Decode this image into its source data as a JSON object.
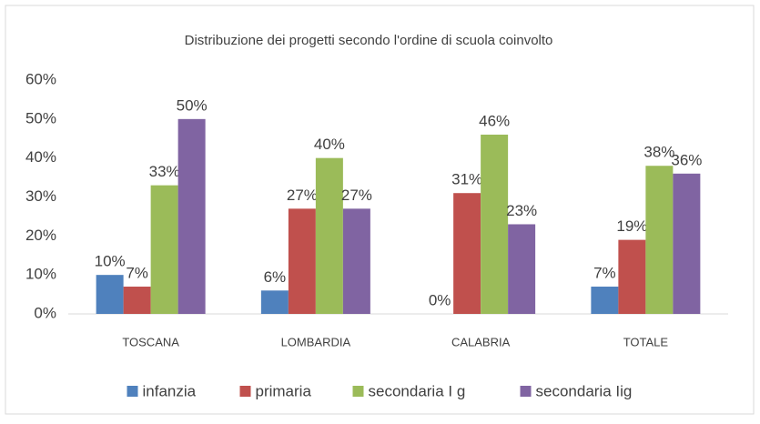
{
  "chart_data": {
    "type": "bar",
    "title": "Distribuzione dei progetti secondo l'ordine di scuola coinvolto",
    "categories": [
      "TOSCANA",
      "LOMBARDIA",
      "CALABRIA",
      "TOTALE"
    ],
    "series": [
      {
        "name": "infanzia",
        "color": "#4f81bd",
        "values": [
          10,
          6,
          0,
          7
        ],
        "value_labels": [
          "10%",
          "6%",
          "0%",
          "7%"
        ]
      },
      {
        "name": "primaria",
        "color": "#c0504d",
        "values": [
          7,
          27,
          31,
          19
        ],
        "value_labels": [
          "7%",
          "27%",
          "31%",
          "19%"
        ]
      },
      {
        "name": "secondaria I g",
        "color": "#9bbb59",
        "values": [
          33,
          40,
          46,
          38
        ],
        "value_labels": [
          "33%",
          "40%",
          "46%",
          "38%"
        ]
      },
      {
        "name": "secondaria Iig",
        "color": "#8064a2",
        "values": [
          50,
          27,
          23,
          36
        ],
        "value_labels": [
          "50%",
          "27%",
          "23%",
          "36%"
        ]
      }
    ],
    "ylim": [
      0,
      60
    ],
    "yticks": [
      {
        "value": 0,
        "label": "0%"
      },
      {
        "value": 10,
        "label": "10%"
      },
      {
        "value": 20,
        "label": "20%"
      },
      {
        "value": 30,
        "label": "30%"
      },
      {
        "value": 40,
        "label": "40%"
      },
      {
        "value": 50,
        "label": "50%"
      },
      {
        "value": 60,
        "label": "60%"
      }
    ],
    "grid": false,
    "legend": "bottom"
  }
}
